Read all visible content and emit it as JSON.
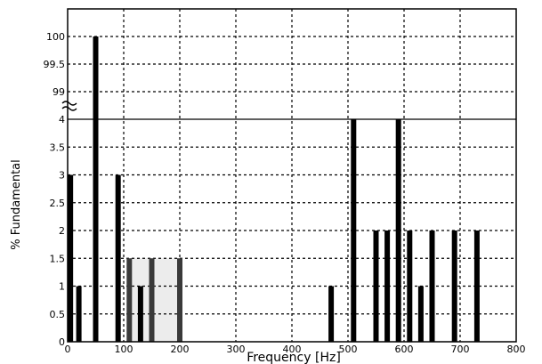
{
  "chart_data": {
    "type": "bar",
    "xlabel": "Frequency [Hz]",
    "ylabel": "% Fundamental",
    "xlim": [
      0,
      800
    ],
    "x_ticks": [
      "0",
      "100",
      "200",
      "300",
      "400",
      "500",
      "600",
      "700",
      "800"
    ],
    "y_axis_broken": true,
    "y_ticks_lower": [
      "0",
      "0.5",
      "1",
      "1.5",
      "2",
      "2.5",
      "3",
      "3.5",
      "4"
    ],
    "y_ticks_upper": [
      "99",
      "99.5",
      "100"
    ],
    "grid": true,
    "highlight_band": {
      "x": [
        110,
        200
      ],
      "color": "#ececec"
    },
    "bar_color": "#000000",
    "bar_color_secondary": "#3a3a3a",
    "bars": [
      {
        "x": 5,
        "value": 3
      },
      {
        "x": 20,
        "value": 1
      },
      {
        "x": 50,
        "value": 100
      },
      {
        "x": 90,
        "value": 3
      },
      {
        "x": 110,
        "value": 1.5
      },
      {
        "x": 130,
        "value": 1
      },
      {
        "x": 150,
        "value": 1.5
      },
      {
        "x": 200,
        "value": 1.5
      },
      {
        "x": 470,
        "value": 1
      },
      {
        "x": 510,
        "value": 4
      },
      {
        "x": 550,
        "value": 2
      },
      {
        "x": 570,
        "value": 2
      },
      {
        "x": 590,
        "value": 4
      },
      {
        "x": 610,
        "value": 2
      },
      {
        "x": 630,
        "value": 1
      },
      {
        "x": 650,
        "value": 2
      },
      {
        "x": 690,
        "value": 2
      },
      {
        "x": 730,
        "value": 2
      }
    ]
  }
}
